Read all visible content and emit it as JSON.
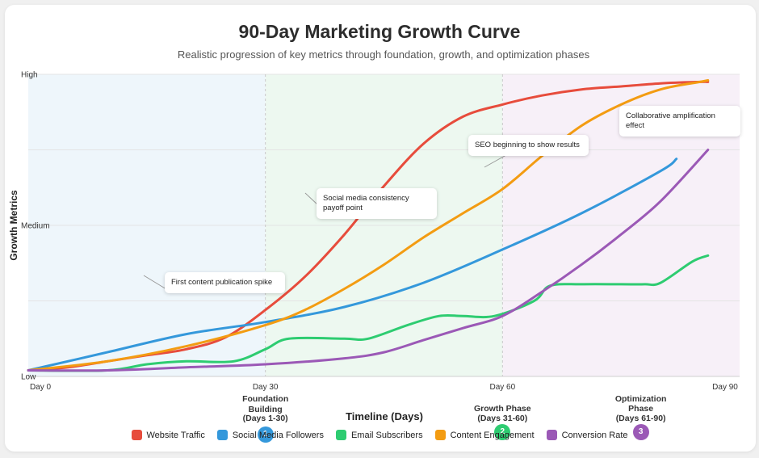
{
  "page": {
    "title": "90-Day Marketing Growth Curve",
    "subtitle": "Realistic progression of key metrics through foundation, growth, and optimization phases"
  },
  "chart_data": {
    "type": "line",
    "title": "90-Day Marketing Growth Curve",
    "subtitle": "Realistic progression of key metrics through foundation, growth, and optimization phases",
    "xlabel": "Timeline (Days)",
    "ylabel": "Growth Metrics",
    "xlim": [
      0,
      90
    ],
    "ylim": [
      0,
      100
    ],
    "x_ticks": [
      {
        "value": 0,
        "label": "Day 0"
      },
      {
        "value": 30,
        "label": "Day 30"
      },
      {
        "value": 60,
        "label": "Day 60"
      },
      {
        "value": 90,
        "label": "Day 90"
      }
    ],
    "y_ticks": [
      {
        "value": 0,
        "label": "Low"
      },
      {
        "value": 50,
        "label": "Medium"
      },
      {
        "value": 100,
        "label": "High"
      }
    ],
    "phases": [
      {
        "name": "Foundation Building",
        "range": "(Days 1-30)",
        "start": 0,
        "end": 30,
        "color": "#eef6fb",
        "badge": "1",
        "badge_color": "#3498db"
      },
      {
        "name": "Growth Phase",
        "range": "(Days 31-60)",
        "start": 30,
        "end": 60,
        "color": "#edf8f0",
        "badge": "2",
        "badge_color": "#2ecc71"
      },
      {
        "name": "Optimization Phase",
        "range": "(Days 61-90)",
        "start": 60,
        "end": 90,
        "color": "#f7f0f8",
        "badge": "3",
        "badge_color": "#9b59b6"
      }
    ],
    "series": [
      {
        "name": "Website Traffic",
        "color": "#e74c3c",
        "x": [
          0,
          5,
          10,
          15,
          20,
          25,
          30,
          35,
          40,
          45,
          50,
          55,
          60,
          65,
          70,
          75,
          80,
          85,
          86
        ],
        "values": [
          2,
          3,
          5,
          7,
          9,
          13,
          22,
          33,
          47,
          63,
          77,
          86,
          90,
          93,
          95,
          96,
          97,
          97.5,
          97.5
        ]
      },
      {
        "name": "Social Media Followers",
        "color": "#3498db",
        "x": [
          0,
          10,
          20,
          30,
          40,
          50,
          60,
          70,
          80,
          82
        ],
        "values": [
          2,
          8,
          14,
          18,
          23,
          31,
          42,
          54,
          68,
          72
        ]
      },
      {
        "name": "Email Subscribers",
        "color": "#2ecc71",
        "x": [
          0,
          10,
          15,
          20,
          26,
          30,
          33,
          40,
          43,
          48,
          52,
          55,
          59,
          64,
          66,
          70,
          75,
          78,
          80,
          84,
          86
        ],
        "values": [
          2,
          2,
          4,
          5,
          5,
          9,
          12.5,
          12.5,
          12.5,
          17,
          20,
          20,
          20,
          25,
          30,
          30.5,
          30.5,
          30.5,
          31,
          38,
          40
        ]
      },
      {
        "name": "Content Engagement",
        "color": "#f39c12",
        "x": [
          0,
          10,
          20,
          30,
          35,
          40,
          45,
          50,
          55,
          60,
          65,
          70,
          75,
          80,
          85,
          86
        ],
        "values": [
          2,
          5,
          10,
          17,
          22,
          29,
          37,
          46,
          54,
          62,
          73,
          83,
          90,
          95,
          97.5,
          98
        ]
      },
      {
        "name": "Conversion Rate",
        "color": "#9b59b6",
        "x": [
          0,
          10,
          20,
          30,
          40,
          45,
          50,
          55,
          60,
          65,
          70,
          75,
          80,
          86
        ],
        "values": [
          2,
          2,
          3,
          4,
          6,
          8,
          12,
          16,
          20,
          28,
          37,
          47,
          58,
          75
        ]
      }
    ],
    "annotations": [
      {
        "text": "First content publication spike",
        "x": 18,
        "y": 28
      },
      {
        "text": "Social media consistency payoff point",
        "x": 35,
        "y": 60
      },
      {
        "text": "SEO beginning to show results",
        "x": 58,
        "y": 70
      },
      {
        "text": "Collaborative amplification effect",
        "x": 81,
        "y": 82
      }
    ],
    "legend_position": "bottom-center",
    "grid": true
  }
}
